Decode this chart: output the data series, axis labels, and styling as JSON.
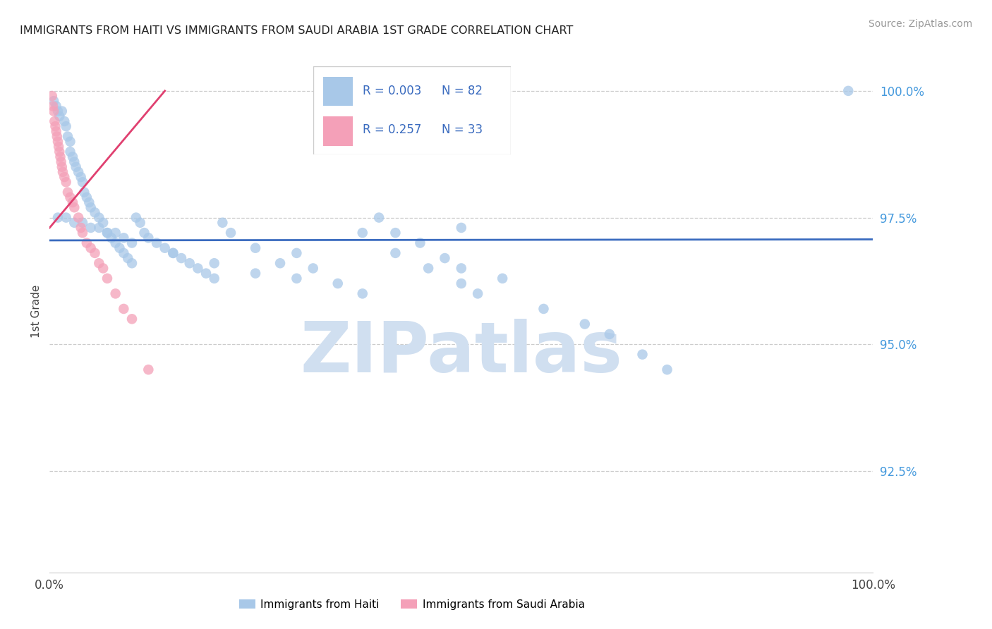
{
  "title": "IMMIGRANTS FROM HAITI VS IMMIGRANTS FROM SAUDI ARABIA 1ST GRADE CORRELATION CHART",
  "source_text": "Source: ZipAtlas.com",
  "xlabel_blue": "Immigrants from Haiti",
  "xlabel_pink": "Immigrants from Saudi Arabia",
  "ylabel": "1st Grade",
  "watermark": "ZIPatlas",
  "legend_blue_r": "R = 0.003",
  "legend_blue_n": "N = 82",
  "legend_pink_r": "R = 0.257",
  "legend_pink_n": "N = 33",
  "blue_color": "#a8c8e8",
  "pink_color": "#f4a0b8",
  "trend_blue_color": "#3a6bbf",
  "trend_pink_color": "#e04070",
  "title_color": "#222222",
  "axis_label_color": "#444444",
  "tick_color": "#4499dd",
  "grid_color": "#cccccc",
  "source_color": "#999999",
  "watermark_color": "#d0dff0",
  "xlim": [
    0.0,
    1.0
  ],
  "ylim": [
    0.905,
    1.008
  ],
  "yticks": [
    0.925,
    0.95,
    0.975,
    1.0
  ],
  "ytick_labels": [
    "92.5%",
    "95.0%",
    "97.5%",
    "100.0%"
  ],
  "xticks": [
    0.0,
    1.0
  ],
  "xtick_labels": [
    "0.0%",
    "100.0%"
  ],
  "blue_x": [
    0.005,
    0.008,
    0.01,
    0.012,
    0.015,
    0.018,
    0.02,
    0.022,
    0.025,
    0.025,
    0.028,
    0.03,
    0.032,
    0.035,
    0.038,
    0.04,
    0.042,
    0.045,
    0.048,
    0.05,
    0.055,
    0.06,
    0.065,
    0.07,
    0.075,
    0.08,
    0.085,
    0.09,
    0.095,
    0.1,
    0.105,
    0.11,
    0.115,
    0.12,
    0.13,
    0.14,
    0.15,
    0.16,
    0.17,
    0.18,
    0.19,
    0.2,
    0.21,
    0.22,
    0.25,
    0.28,
    0.3,
    0.32,
    0.35,
    0.38,
    0.4,
    0.42,
    0.45,
    0.48,
    0.5,
    0.55,
    0.38,
    0.42,
    0.46,
    0.5,
    0.52,
    0.6,
    0.65,
    0.68,
    0.72,
    0.75,
    0.01,
    0.02,
    0.03,
    0.04,
    0.05,
    0.06,
    0.07,
    0.08,
    0.09,
    0.1,
    0.15,
    0.2,
    0.25,
    0.3,
    0.97,
    0.5
  ],
  "blue_y": [
    0.998,
    0.997,
    0.996,
    0.995,
    0.996,
    0.994,
    0.993,
    0.991,
    0.99,
    0.988,
    0.987,
    0.986,
    0.985,
    0.984,
    0.983,
    0.982,
    0.98,
    0.979,
    0.978,
    0.977,
    0.976,
    0.975,
    0.974,
    0.972,
    0.971,
    0.97,
    0.969,
    0.968,
    0.967,
    0.966,
    0.975,
    0.974,
    0.972,
    0.971,
    0.97,
    0.969,
    0.968,
    0.967,
    0.966,
    0.965,
    0.964,
    0.963,
    0.974,
    0.972,
    0.969,
    0.966,
    0.968,
    0.965,
    0.962,
    0.96,
    0.975,
    0.972,
    0.97,
    0.967,
    0.965,
    0.963,
    0.972,
    0.968,
    0.965,
    0.962,
    0.96,
    0.957,
    0.954,
    0.952,
    0.948,
    0.945,
    0.975,
    0.975,
    0.974,
    0.974,
    0.973,
    0.973,
    0.972,
    0.972,
    0.971,
    0.97,
    0.968,
    0.966,
    0.964,
    0.963,
    1.0,
    0.973
  ],
  "pink_x": [
    0.003,
    0.004,
    0.005,
    0.006,
    0.007,
    0.008,
    0.009,
    0.01,
    0.011,
    0.012,
    0.013,
    0.014,
    0.015,
    0.016,
    0.018,
    0.02,
    0.022,
    0.025,
    0.028,
    0.03,
    0.035,
    0.038,
    0.04,
    0.045,
    0.05,
    0.055,
    0.06,
    0.065,
    0.07,
    0.08,
    0.09,
    0.1,
    0.12
  ],
  "pink_y": [
    0.999,
    0.997,
    0.996,
    0.994,
    0.993,
    0.992,
    0.991,
    0.99,
    0.989,
    0.988,
    0.987,
    0.986,
    0.985,
    0.984,
    0.983,
    0.982,
    0.98,
    0.979,
    0.978,
    0.977,
    0.975,
    0.973,
    0.972,
    0.97,
    0.969,
    0.968,
    0.966,
    0.965,
    0.963,
    0.96,
    0.957,
    0.955,
    0.945
  ],
  "blue_trend_x": [
    0.0,
    1.0
  ],
  "blue_trend_y": [
    0.9705,
    0.9707
  ],
  "pink_trend_x": [
    0.0,
    0.14
  ],
  "pink_trend_y": [
    0.973,
    1.0
  ]
}
